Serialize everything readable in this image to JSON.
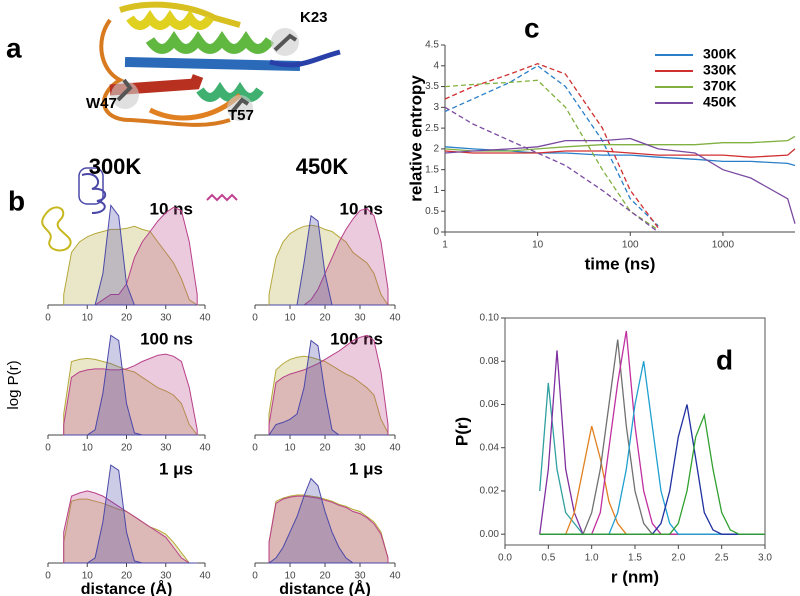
{
  "figure": {
    "panel_labels": [
      "a",
      "b",
      "c",
      "d"
    ],
    "residue_labels": [
      "K23",
      "W47",
      "T57"
    ],
    "column_labels": [
      "300K",
      "450K"
    ],
    "shared_y_label": "log P(r)"
  },
  "chart_data": [
    {
      "type": "area",
      "title": "10 ns",
      "x": [
        4,
        6,
        8,
        10,
        12,
        14,
        16,
        18,
        20,
        22,
        24,
        26,
        28,
        30,
        32,
        34,
        36,
        38
      ],
      "xlim": [
        0,
        40
      ],
      "xticks": [
        0,
        10,
        20,
        30,
        40
      ],
      "ylim": [
        0,
        1
      ],
      "series": [
        {
          "color": "#b5a83a",
          "values": [
            0.1,
            0.5,
            0.6,
            0.65,
            0.68,
            0.7,
            0.72,
            0.72,
            0.73,
            0.75,
            0.72,
            0.7,
            0.6,
            0.5,
            0.4,
            0.25,
            0.05,
            0
          ]
        },
        {
          "color": "#b8408a",
          "values": [
            0,
            0,
            0,
            0,
            0,
            0.05,
            0.1,
            0.1,
            0.2,
            0.45,
            0.6,
            0.7,
            0.8,
            0.88,
            0.93,
            0.9,
            0.6,
            0.1
          ]
        },
        {
          "color": "#4a48a8",
          "values": [
            0,
            0,
            0,
            0,
            0,
            0.3,
            0.95,
            0.85,
            0.2,
            0,
            0,
            0,
            0,
            0,
            0,
            0,
            0,
            0
          ]
        }
      ]
    },
    {
      "type": "area",
      "title": "10 ns",
      "x": [
        4,
        6,
        8,
        10,
        12,
        14,
        16,
        18,
        20,
        22,
        24,
        26,
        28,
        30,
        32,
        34,
        36,
        38
      ],
      "xlim": [
        0,
        40
      ],
      "xticks": [
        0,
        10,
        20,
        30,
        40
      ],
      "ylim": [
        0,
        1
      ],
      "series": [
        {
          "color": "#b5a83a",
          "values": [
            0.1,
            0.45,
            0.6,
            0.68,
            0.72,
            0.75,
            0.76,
            0.75,
            0.72,
            0.7,
            0.65,
            0.6,
            0.5,
            0.45,
            0.4,
            0.3,
            0.1,
            0
          ]
        },
        {
          "color": "#b8408a",
          "values": [
            0,
            0,
            0,
            0,
            0,
            0,
            0.05,
            0.15,
            0.3,
            0.45,
            0.6,
            0.72,
            0.82,
            0.9,
            0.92,
            0.85,
            0.6,
            0.15
          ]
        },
        {
          "color": "#4a48a8",
          "values": [
            0,
            0,
            0,
            0,
            0,
            0.4,
            0.85,
            0.8,
            0.3,
            0,
            0,
            0,
            0,
            0,
            0,
            0,
            0,
            0
          ]
        }
      ]
    },
    {
      "type": "area",
      "title": "100 ns",
      "x": [
        4,
        6,
        8,
        10,
        12,
        14,
        16,
        18,
        20,
        22,
        24,
        26,
        28,
        30,
        32,
        34,
        36,
        38
      ],
      "xlim": [
        0,
        40
      ],
      "xticks": [
        0,
        10,
        20,
        30,
        40
      ],
      "ylim": [
        0,
        1
      ],
      "series": [
        {
          "color": "#b5a83a",
          "values": [
            0.2,
            0.7,
            0.72,
            0.73,
            0.72,
            0.7,
            0.68,
            0.65,
            0.62,
            0.6,
            0.55,
            0.5,
            0.45,
            0.42,
            0.38,
            0.3,
            0.1,
            0
          ]
        },
        {
          "color": "#b8408a",
          "values": [
            0.1,
            0.55,
            0.6,
            0.62,
            0.63,
            0.63,
            0.62,
            0.62,
            0.63,
            0.66,
            0.7,
            0.73,
            0.76,
            0.77,
            0.75,
            0.7,
            0.45,
            0.05
          ]
        },
        {
          "color": "#4a48a8",
          "values": [
            0,
            0,
            0,
            0,
            0.05,
            0.4,
            0.95,
            0.9,
            0.3,
            0.02,
            0,
            0,
            0,
            0,
            0,
            0,
            0,
            0
          ]
        }
      ]
    },
    {
      "type": "area",
      "title": "100 ns",
      "x": [
        4,
        6,
        8,
        10,
        12,
        14,
        16,
        18,
        20,
        22,
        24,
        26,
        28,
        30,
        32,
        34,
        36,
        38
      ],
      "xlim": [
        0,
        40
      ],
      "xticks": [
        0,
        10,
        20,
        30,
        40
      ],
      "ylim": [
        0,
        1
      ],
      "series": [
        {
          "color": "#b5a83a",
          "values": [
            0.2,
            0.62,
            0.68,
            0.72,
            0.74,
            0.75,
            0.74,
            0.72,
            0.7,
            0.66,
            0.62,
            0.58,
            0.55,
            0.5,
            0.45,
            0.38,
            0.15,
            0.02
          ]
        },
        {
          "color": "#b8408a",
          "values": [
            0.1,
            0.5,
            0.55,
            0.58,
            0.6,
            0.62,
            0.65,
            0.68,
            0.72,
            0.76,
            0.8,
            0.85,
            0.9,
            0.93,
            0.95,
            0.9,
            0.6,
            0.1
          ]
        },
        {
          "color": "#4a48a8",
          "values": [
            0,
            0.1,
            0.12,
            0.15,
            0.2,
            0.45,
            0.9,
            0.85,
            0.4,
            0.05,
            0,
            0,
            0,
            0,
            0,
            0,
            0,
            0
          ]
        }
      ]
    },
    {
      "type": "area",
      "title": "1 μs",
      "x": [
        4,
        6,
        8,
        10,
        12,
        14,
        16,
        18,
        20,
        22,
        24,
        26,
        28,
        30,
        32,
        34,
        36,
        38
      ],
      "xlim": [
        0,
        40
      ],
      "xticks": [
        0,
        10,
        20,
        30,
        40
      ],
      "ylim": [
        0,
        1
      ],
      "x_label": "distance (Å)",
      "series": [
        {
          "color": "#b5a83a",
          "values": [
            0.2,
            0.6,
            0.62,
            0.62,
            0.6,
            0.58,
            0.55,
            0.52,
            0.5,
            0.45,
            0.4,
            0.35,
            0.32,
            0.28,
            0.2,
            0.1,
            0,
            0
          ]
        },
        {
          "color": "#b8408a",
          "values": [
            0.3,
            0.65,
            0.68,
            0.7,
            0.68,
            0.65,
            0.6,
            0.55,
            0.5,
            0.45,
            0.4,
            0.35,
            0.3,
            0.25,
            0.15,
            0.05,
            0,
            0
          ]
        },
        {
          "color": "#4a48a8",
          "values": [
            0,
            0,
            0,
            0,
            0.05,
            0.4,
            0.95,
            0.9,
            0.3,
            0.02,
            0,
            0,
            0,
            0,
            0,
            0,
            0,
            0
          ]
        }
      ]
    },
    {
      "type": "area",
      "title": "1 μs",
      "x": [
        4,
        6,
        8,
        10,
        12,
        14,
        16,
        18,
        20,
        22,
        24,
        26,
        28,
        30,
        32,
        34,
        36,
        38
      ],
      "xlim": [
        0,
        40
      ],
      "xticks": [
        0,
        10,
        20,
        30,
        40
      ],
      "ylim": [
        0,
        1
      ],
      "x_label": "distance (Å)",
      "series": [
        {
          "color": "#b5a83a",
          "values": [
            0.2,
            0.6,
            0.63,
            0.65,
            0.66,
            0.66,
            0.65,
            0.64,
            0.62,
            0.6,
            0.57,
            0.55,
            0.52,
            0.5,
            0.45,
            0.4,
            0.3,
            0.05
          ]
        },
        {
          "color": "#b8408a",
          "values": [
            0.2,
            0.58,
            0.62,
            0.64,
            0.65,
            0.65,
            0.64,
            0.63,
            0.61,
            0.59,
            0.56,
            0.54,
            0.5,
            0.48,
            0.44,
            0.38,
            0.28,
            0.05
          ]
        },
        {
          "color": "#4a48a8",
          "values": [
            0,
            0.05,
            0.15,
            0.3,
            0.45,
            0.65,
            0.82,
            0.75,
            0.5,
            0.3,
            0.15,
            0.05,
            0,
            0,
            0,
            0,
            0,
            0
          ]
        }
      ]
    },
    {
      "type": "line",
      "x_label": "time (ns)",
      "y_label": "relative entropy",
      "xscale": "log",
      "legend": "upper right",
      "x": [
        1,
        2,
        5,
        10,
        20,
        50,
        100,
        200,
        500,
        1000,
        2000,
        5000,
        6000
      ],
      "xlim": [
        1,
        6000
      ],
      "xticks": [
        1,
        10,
        100,
        1000
      ],
      "ylim": [
        0,
        4.5
      ],
      "yticks": [
        0,
        0.5,
        1,
        1.5,
        2,
        2.5,
        3,
        3.5,
        4,
        4.5
      ],
      "series": [
        {
          "name": "300K",
          "color": "#2a7fc8",
          "values": [
            2.05,
            2.0,
            1.95,
            1.9,
            1.9,
            1.85,
            1.85,
            1.8,
            1.75,
            1.7,
            1.7,
            1.65,
            1.6
          ],
          "dashed_values": [
            2.9,
            3.2,
            3.6,
            4.0,
            3.5,
            2.2,
            0.8,
            0.15,
            null,
            null,
            null,
            null,
            null
          ]
        },
        {
          "name": "330K",
          "color": "#d03030",
          "values": [
            1.95,
            1.9,
            1.9,
            1.9,
            1.95,
            1.95,
            1.9,
            1.85,
            1.85,
            1.85,
            1.8,
            1.85,
            2.0
          ],
          "dashed_values": [
            3.2,
            3.5,
            3.8,
            4.05,
            3.8,
            2.5,
            1.0,
            0.1,
            null,
            null,
            null,
            null,
            null
          ]
        },
        {
          "name": "370K",
          "color": "#80b040",
          "values": [
            2.0,
            1.95,
            1.95,
            2.0,
            2.05,
            2.1,
            2.1,
            2.1,
            2.1,
            2.15,
            2.15,
            2.2,
            2.3
          ],
          "dashed_values": [
            3.5,
            3.55,
            3.6,
            3.65,
            3.0,
            1.5,
            0.5,
            0.05,
            null,
            null,
            null,
            null,
            null
          ]
        },
        {
          "name": "450K",
          "color": "#7a4aa0",
          "values": [
            1.9,
            1.95,
            2.0,
            2.05,
            2.2,
            2.2,
            2.25,
            2.0,
            1.9,
            1.5,
            1.3,
            0.8,
            0.2
          ],
          "dashed_values": [
            3.0,
            2.6,
            2.2,
            1.9,
            1.6,
            1.0,
            0.5,
            0.0,
            null,
            null,
            null,
            null,
            null
          ]
        }
      ]
    },
    {
      "type": "line",
      "x_label": "r (nm)",
      "y_label": "P(r)",
      "frame": true,
      "x": [
        0.4,
        0.5,
        0.6,
        0.7,
        0.8,
        0.9,
        1.0,
        1.1,
        1.2,
        1.3,
        1.4,
        1.5,
        1.6,
        1.7,
        1.8,
        1.9,
        2.0,
        2.1,
        2.2,
        2.3,
        2.4,
        2.5,
        2.6,
        2.7,
        2.8,
        2.9,
        3.0
      ],
      "xlim": [
        0,
        3
      ],
      "xticks": [
        {
          "value": 0,
          "label": "0.0"
        },
        0.5,
        {
          "value": 1,
          "label": "1.0"
        },
        1.5,
        {
          "value": 2,
          "label": "2.0"
        },
        2.5,
        {
          "value": 3,
          "label": "3.0"
        }
      ],
      "ylim": [
        -0.005,
        0.1
      ],
      "yticks": [
        {
          "value": 0,
          "label": "0.00"
        },
        {
          "value": 0.02,
          "label": "0.02"
        },
        {
          "value": 0.04,
          "label": "0.04"
        },
        {
          "value": 0.06,
          "label": "0.06"
        },
        {
          "value": 0.08,
          "label": "0.08"
        },
        {
          "value": 0.1,
          "label": "0.10"
        }
      ],
      "series": [
        {
          "color": "#30a0a0",
          "values": [
            0.02,
            0.07,
            0.03,
            0.01,
            0.005,
            0,
            0,
            0,
            0,
            0,
            0,
            0,
            0,
            0,
            0,
            0,
            0,
            0,
            0,
            0,
            0,
            0,
            0,
            0,
            0,
            0,
            0
          ]
        },
        {
          "color": "#8030a0",
          "values": [
            0,
            0.03,
            0.085,
            0.03,
            0.01,
            0,
            0,
            0,
            0,
            0,
            0,
            0,
            0,
            0,
            0,
            0,
            0,
            0,
            0,
            0,
            0,
            0,
            0,
            0,
            0,
            0,
            0
          ]
        },
        {
          "color": "#e08020",
          "values": [
            0,
            0,
            0,
            0,
            0.01,
            0.03,
            0.05,
            0.035,
            0.015,
            0.005,
            0,
            0,
            0,
            0,
            0,
            0,
            0,
            0,
            0,
            0,
            0,
            0,
            0,
            0,
            0,
            0,
            0
          ]
        },
        {
          "color": "#707070",
          "values": [
            0,
            0,
            0,
            0,
            0,
            0,
            0.01,
            0.03,
            0.06,
            0.09,
            0.05,
            0.02,
            0.005,
            0,
            0,
            0,
            0,
            0,
            0,
            0,
            0,
            0,
            0,
            0,
            0,
            0,
            0
          ]
        },
        {
          "color": "#c030a0",
          "values": [
            0,
            0,
            0,
            0,
            0,
            0,
            0,
            0.01,
            0.04,
            0.07,
            0.094,
            0.05,
            0.02,
            0.005,
            0,
            0,
            0,
            0,
            0,
            0,
            0,
            0,
            0,
            0,
            0,
            0,
            0
          ]
        },
        {
          "color": "#20a0d0",
          "values": [
            0,
            0,
            0,
            0,
            0,
            0,
            0,
            0,
            0,
            0.01,
            0.03,
            0.06,
            0.08,
            0.05,
            0.02,
            0.005,
            0,
            0,
            0,
            0,
            0,
            0,
            0,
            0,
            0,
            0,
            0
          ]
        },
        {
          "color": "#2030a0",
          "values": [
            0,
            0,
            0,
            0,
            0,
            0,
            0,
            0,
            0,
            0,
            0,
            0,
            0,
            0,
            0.005,
            0.02,
            0.045,
            0.06,
            0.035,
            0.01,
            0.002,
            0,
            0,
            0,
            0,
            0,
            0
          ]
        },
        {
          "color": "#30a030",
          "values": [
            0,
            0,
            0,
            0,
            0,
            0,
            0,
            0,
            0,
            0,
            0,
            0,
            0,
            0,
            0,
            0,
            0.005,
            0.02,
            0.045,
            0.055,
            0.03,
            0.01,
            0.002,
            0,
            0,
            0,
            0
          ]
        }
      ]
    }
  ]
}
